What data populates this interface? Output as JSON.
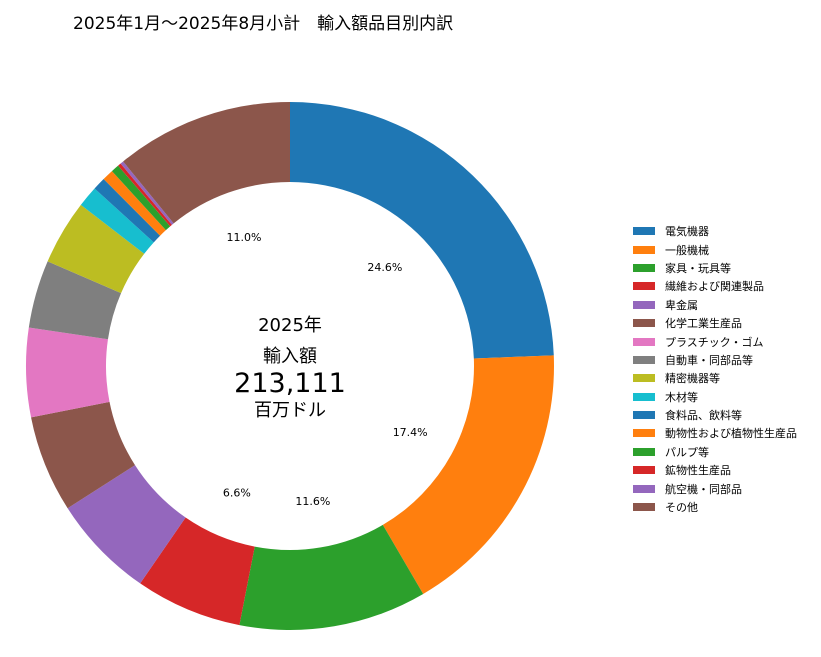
{
  "chart_data": {
    "type": "pie",
    "title": "2025年1月～2025年8月小計　輸入額品目別内訳",
    "center": {
      "year": "2025年",
      "label": "輸入額",
      "total": "213,111",
      "unit": "百万ドル"
    },
    "categories": [
      "電気機器",
      "一般機械",
      "家具・玩具等",
      "繊維および関連製品",
      "卑金属",
      "化学工業生産品",
      "プラスチック・ゴム",
      "自動車・同部品等",
      "精密機器等",
      "木材等",
      "食料品、飲料等",
      "動物性および植物性生産品",
      "パルプ等",
      "鉱物性生産品",
      "航空機・同部品",
      "その他"
    ],
    "values": [
      24.6,
      17.4,
      11.6,
      6.6,
      6.4,
      6.0,
      5.5,
      4.2,
      4.0,
      1.3,
      0.8,
      0.7,
      0.5,
      0.2,
      0.2,
      11.0
    ],
    "value_labels": [
      "24.6%",
      "17.4%",
      "11.6%",
      "6.6%",
      "",
      "",
      "",
      "",
      "",
      "",
      "",
      "",
      "",
      "",
      "",
      "11.0%"
    ],
    "colors": [
      "#1f77b4",
      "#ff7f0e",
      "#2ca02c",
      "#d62728",
      "#9467bd",
      "#8c564b",
      "#e377c2",
      "#7f7f7f",
      "#bcbd22",
      "#17becf",
      "#1f77b4",
      "#ff7f0e",
      "#2ca02c",
      "#d62728",
      "#9467bd",
      "#8c564b"
    ],
    "legend_position": "right"
  }
}
